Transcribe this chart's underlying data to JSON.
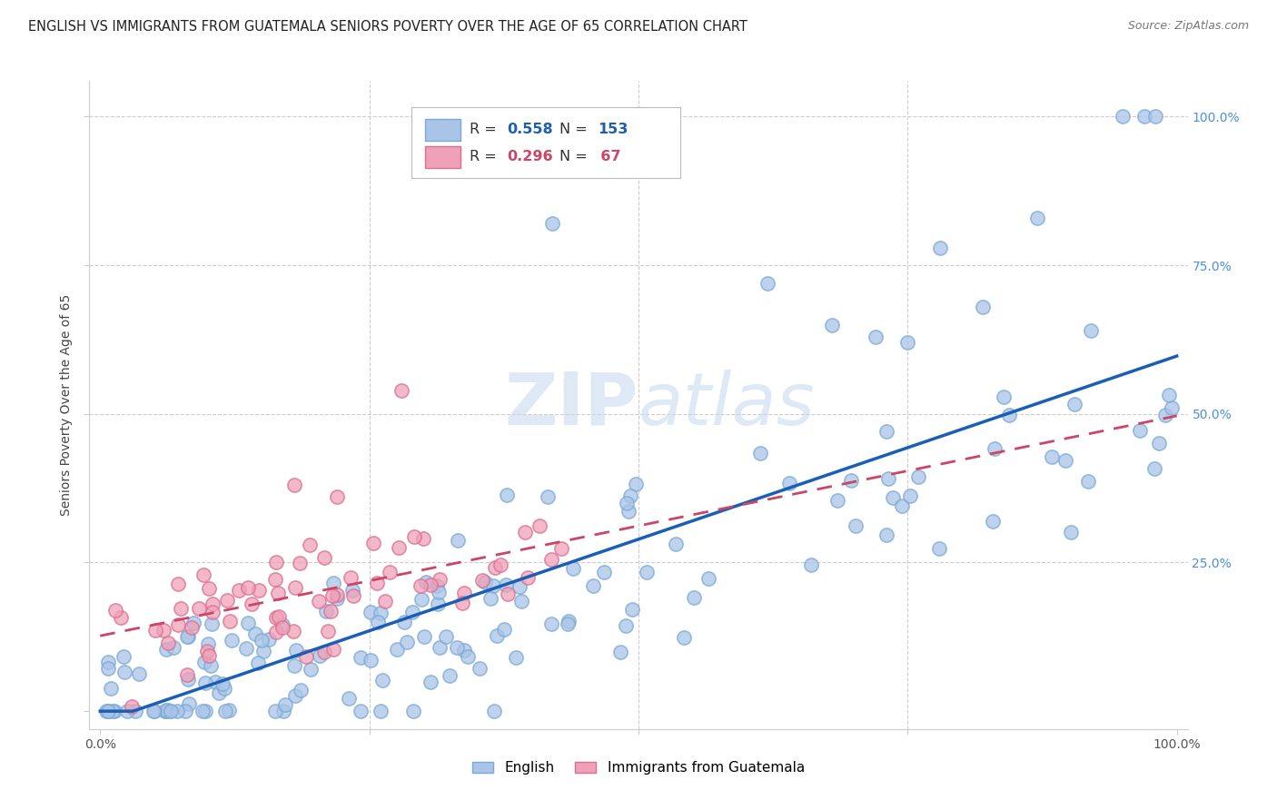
{
  "title": "ENGLISH VS IMMIGRANTS FROM GUATEMALA SENIORS POVERTY OVER THE AGE OF 65 CORRELATION CHART",
  "source": "Source: ZipAtlas.com",
  "ylabel": "Seniors Poverty Over the Age of 65",
  "english_R": 0.558,
  "english_N": 153,
  "guatemala_R": 0.296,
  "guatemala_N": 67,
  "english_color": "#aac4e8",
  "english_edge_color": "#7aaad4",
  "english_line_color": "#1a5fb4",
  "guatemala_color": "#f0a0b8",
  "guatemala_edge_color": "#d87090",
  "guatemala_line_color": "#cc4466",
  "watermark_color": "#c5d8ee",
  "background_color": "#ffffff",
  "grid_color": "#cccccc",
  "right_tick_color": "#4a90d9",
  "title_fontsize": 10.5,
  "axis_label_fontsize": 10,
  "legend_fontsize": 11
}
